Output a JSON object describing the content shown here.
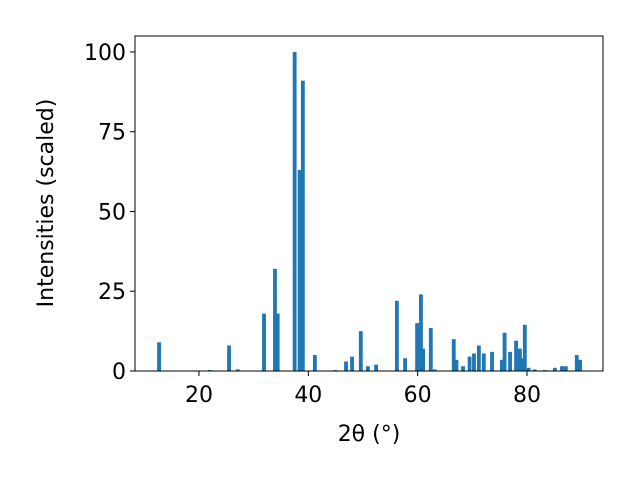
{
  "chart_data": {
    "type": "bar",
    "xlabel": "2θ (°)",
    "ylabel": "Intensities (scaled)",
    "color": "#1f77b4",
    "x": [
      12.7,
      22.0,
      25.5,
      27.1,
      31.9,
      33.9,
      34.4,
      37.5,
      38.4,
      39.0,
      41.2,
      44.9,
      46.9,
      48.0,
      49.6,
      50.9,
      52.4,
      56.2,
      57.7,
      59.9,
      60.6,
      61.0,
      62.4,
      63.1,
      66.6,
      67.1,
      68.3,
      69.5,
      70.3,
      71.2,
      72.1,
      73.6,
      75.4,
      75.9,
      76.9,
      78.0,
      78.7,
      79.0,
      79.6,
      80.3,
      81.4,
      83.3,
      85.1,
      86.4,
      87.1,
      89.1,
      89.7
    ],
    "values": [
      9,
      0.3,
      8,
      0.5,
      18,
      32,
      18,
      100,
      63,
      91,
      5,
      0.3,
      3,
      4.5,
      12.5,
      1.5,
      2,
      22,
      4,
      15,
      24,
      7,
      13.5,
      0.5,
      10,
      3.5,
      1.5,
      4.5,
      5.5,
      8,
      5.5,
      6,
      3.5,
      12,
      6,
      9.5,
      7,
      4,
      14.5,
      1,
      0.5,
      0.3,
      1,
      1.5,
      1.5,
      5,
      3.5
    ],
    "xlim": [
      8.3,
      93.9
    ],
    "ylim": [
      0,
      105
    ],
    "xticks": [
      20,
      40,
      60,
      80
    ],
    "yticks": [
      0,
      25,
      50,
      75,
      100
    ]
  }
}
